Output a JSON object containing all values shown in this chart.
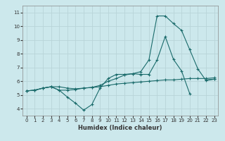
{
  "title": "",
  "xlabel": "Humidex (Indice chaleur)",
  "ylabel": "",
  "background_color": "#cce8ec",
  "grid_color": "#b8d4d8",
  "line_color": "#1a6b6b",
  "xlim": [
    -0.5,
    23.5
  ],
  "ylim": [
    3.5,
    11.5
  ],
  "xticks": [
    0,
    1,
    2,
    3,
    4,
    5,
    6,
    7,
    8,
    9,
    10,
    11,
    12,
    13,
    14,
    15,
    16,
    17,
    18,
    19,
    20,
    21,
    22,
    23
  ],
  "yticks": [
    4,
    5,
    6,
    7,
    8,
    9,
    10,
    11
  ],
  "series": [
    {
      "x": [
        0,
        1,
        2,
        3,
        4,
        5,
        6,
        7,
        8,
        9,
        10,
        11,
        12,
        13,
        14,
        15,
        16,
        17,
        18,
        19,
        20,
        21,
        22,
        23
      ],
      "y": [
        5.3,
        5.35,
        5.5,
        5.6,
        5.35,
        4.85,
        4.4,
        3.9,
        4.3,
        5.5,
        6.2,
        6.5,
        6.5,
        6.55,
        6.5,
        6.5,
        7.55,
        9.25,
        7.6,
        6.75,
        5.1,
        null,
        6.1,
        6.15
      ]
    },
    {
      "x": [
        0,
        1,
        2,
        3,
        4,
        5,
        6,
        7,
        8,
        9,
        10,
        11,
        12,
        13,
        14,
        15,
        16,
        17,
        18,
        19,
        20,
        21,
        22,
        23
      ],
      "y": [
        5.3,
        5.35,
        5.5,
        5.6,
        5.6,
        5.5,
        5.45,
        5.5,
        5.55,
        5.6,
        5.7,
        5.8,
        5.85,
        5.9,
        5.95,
        6.0,
        6.05,
        6.1,
        6.1,
        6.15,
        6.2,
        6.2,
        6.2,
        6.25
      ]
    },
    {
      "x": [
        0,
        1,
        2,
        3,
        4,
        5,
        6,
        7,
        8,
        9,
        10,
        11,
        12,
        13,
        14,
        15,
        16,
        17,
        18,
        19,
        20,
        21,
        22,
        23
      ],
      "y": [
        5.3,
        5.35,
        5.5,
        5.6,
        5.35,
        5.35,
        5.4,
        5.5,
        5.55,
        5.7,
        6.0,
        6.2,
        6.45,
        6.55,
        6.7,
        7.55,
        10.75,
        10.75,
        10.2,
        9.7,
        8.3,
        6.9,
        6.05,
        6.15
      ]
    }
  ]
}
